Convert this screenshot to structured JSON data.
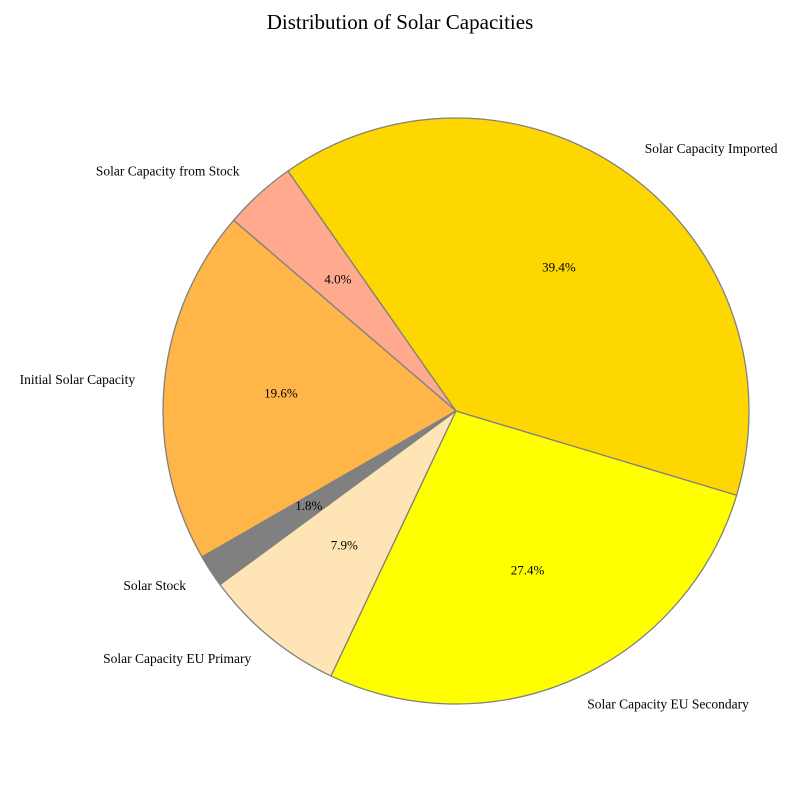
{
  "chart_data": {
    "type": "pie",
    "title": "Distribution of Solar Capacities",
    "start_angle_deg": 125,
    "direction": "counterclockwise",
    "edge_color": "#808080",
    "slices": [
      {
        "label": "Solar Capacity from Stock",
        "value": 4.0,
        "pct_label": "4.0%",
        "color": "#FFA98F"
      },
      {
        "label": "Initial Solar Capacity",
        "value": 19.6,
        "pct_label": "19.6%",
        "color": "#FFB548"
      },
      {
        "label": "Solar Stock",
        "value": 1.8,
        "pct_label": "1.8%",
        "color": "#808080"
      },
      {
        "label": "Solar Capacity EU Primary",
        "value": 7.9,
        "pct_label": "7.9%",
        "color": "#FFE4B5"
      },
      {
        "label": "Solar Capacity EU Secondary",
        "value": 27.4,
        "pct_label": "27.4%",
        "color": "#FFFF00"
      },
      {
        "label": "Solar Capacity Imported",
        "value": 39.4,
        "pct_label": "39.4%",
        "color": "#FFD700"
      }
    ]
  }
}
